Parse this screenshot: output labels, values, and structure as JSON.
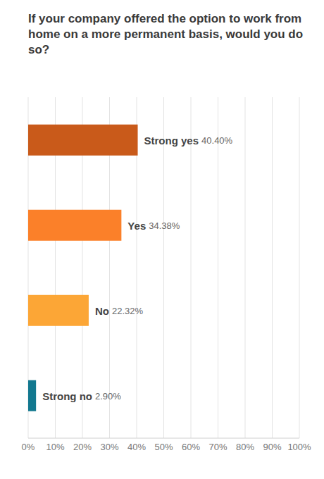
{
  "chart_data": {
    "type": "bar",
    "title": "If your company offered the option to work from home on a more permanent basis, would you do so?",
    "orientation": "horizontal",
    "categories": [
      "Strong yes",
      "Yes",
      "No",
      "Strong no"
    ],
    "values": [
      40.4,
      34.38,
      22.32,
      2.9
    ],
    "value_labels": [
      "40.40%",
      "34.38%",
      "22.32%",
      "2.90%"
    ],
    "colors": [
      "#c95a1a",
      "#fb8029",
      "#fca636",
      "#12788f"
    ],
    "data_labels": true,
    "xlim": [
      0,
      100
    ],
    "xticks": [
      {
        "value": 0,
        "label": "0%"
      },
      {
        "value": 10,
        "label": "10%"
      },
      {
        "value": 20,
        "label": "20%"
      },
      {
        "value": 30,
        "label": "30%"
      },
      {
        "value": 40,
        "label": "40%"
      },
      {
        "value": 50,
        "label": "50%"
      },
      {
        "value": 60,
        "label": "60%"
      },
      {
        "value": 70,
        "label": "70%"
      },
      {
        "value": 80,
        "label": "80%"
      },
      {
        "value": 90,
        "label": "90%"
      },
      {
        "value": 100,
        "label": "100%"
      }
    ],
    "grid": true,
    "tick_labels": "x"
  }
}
